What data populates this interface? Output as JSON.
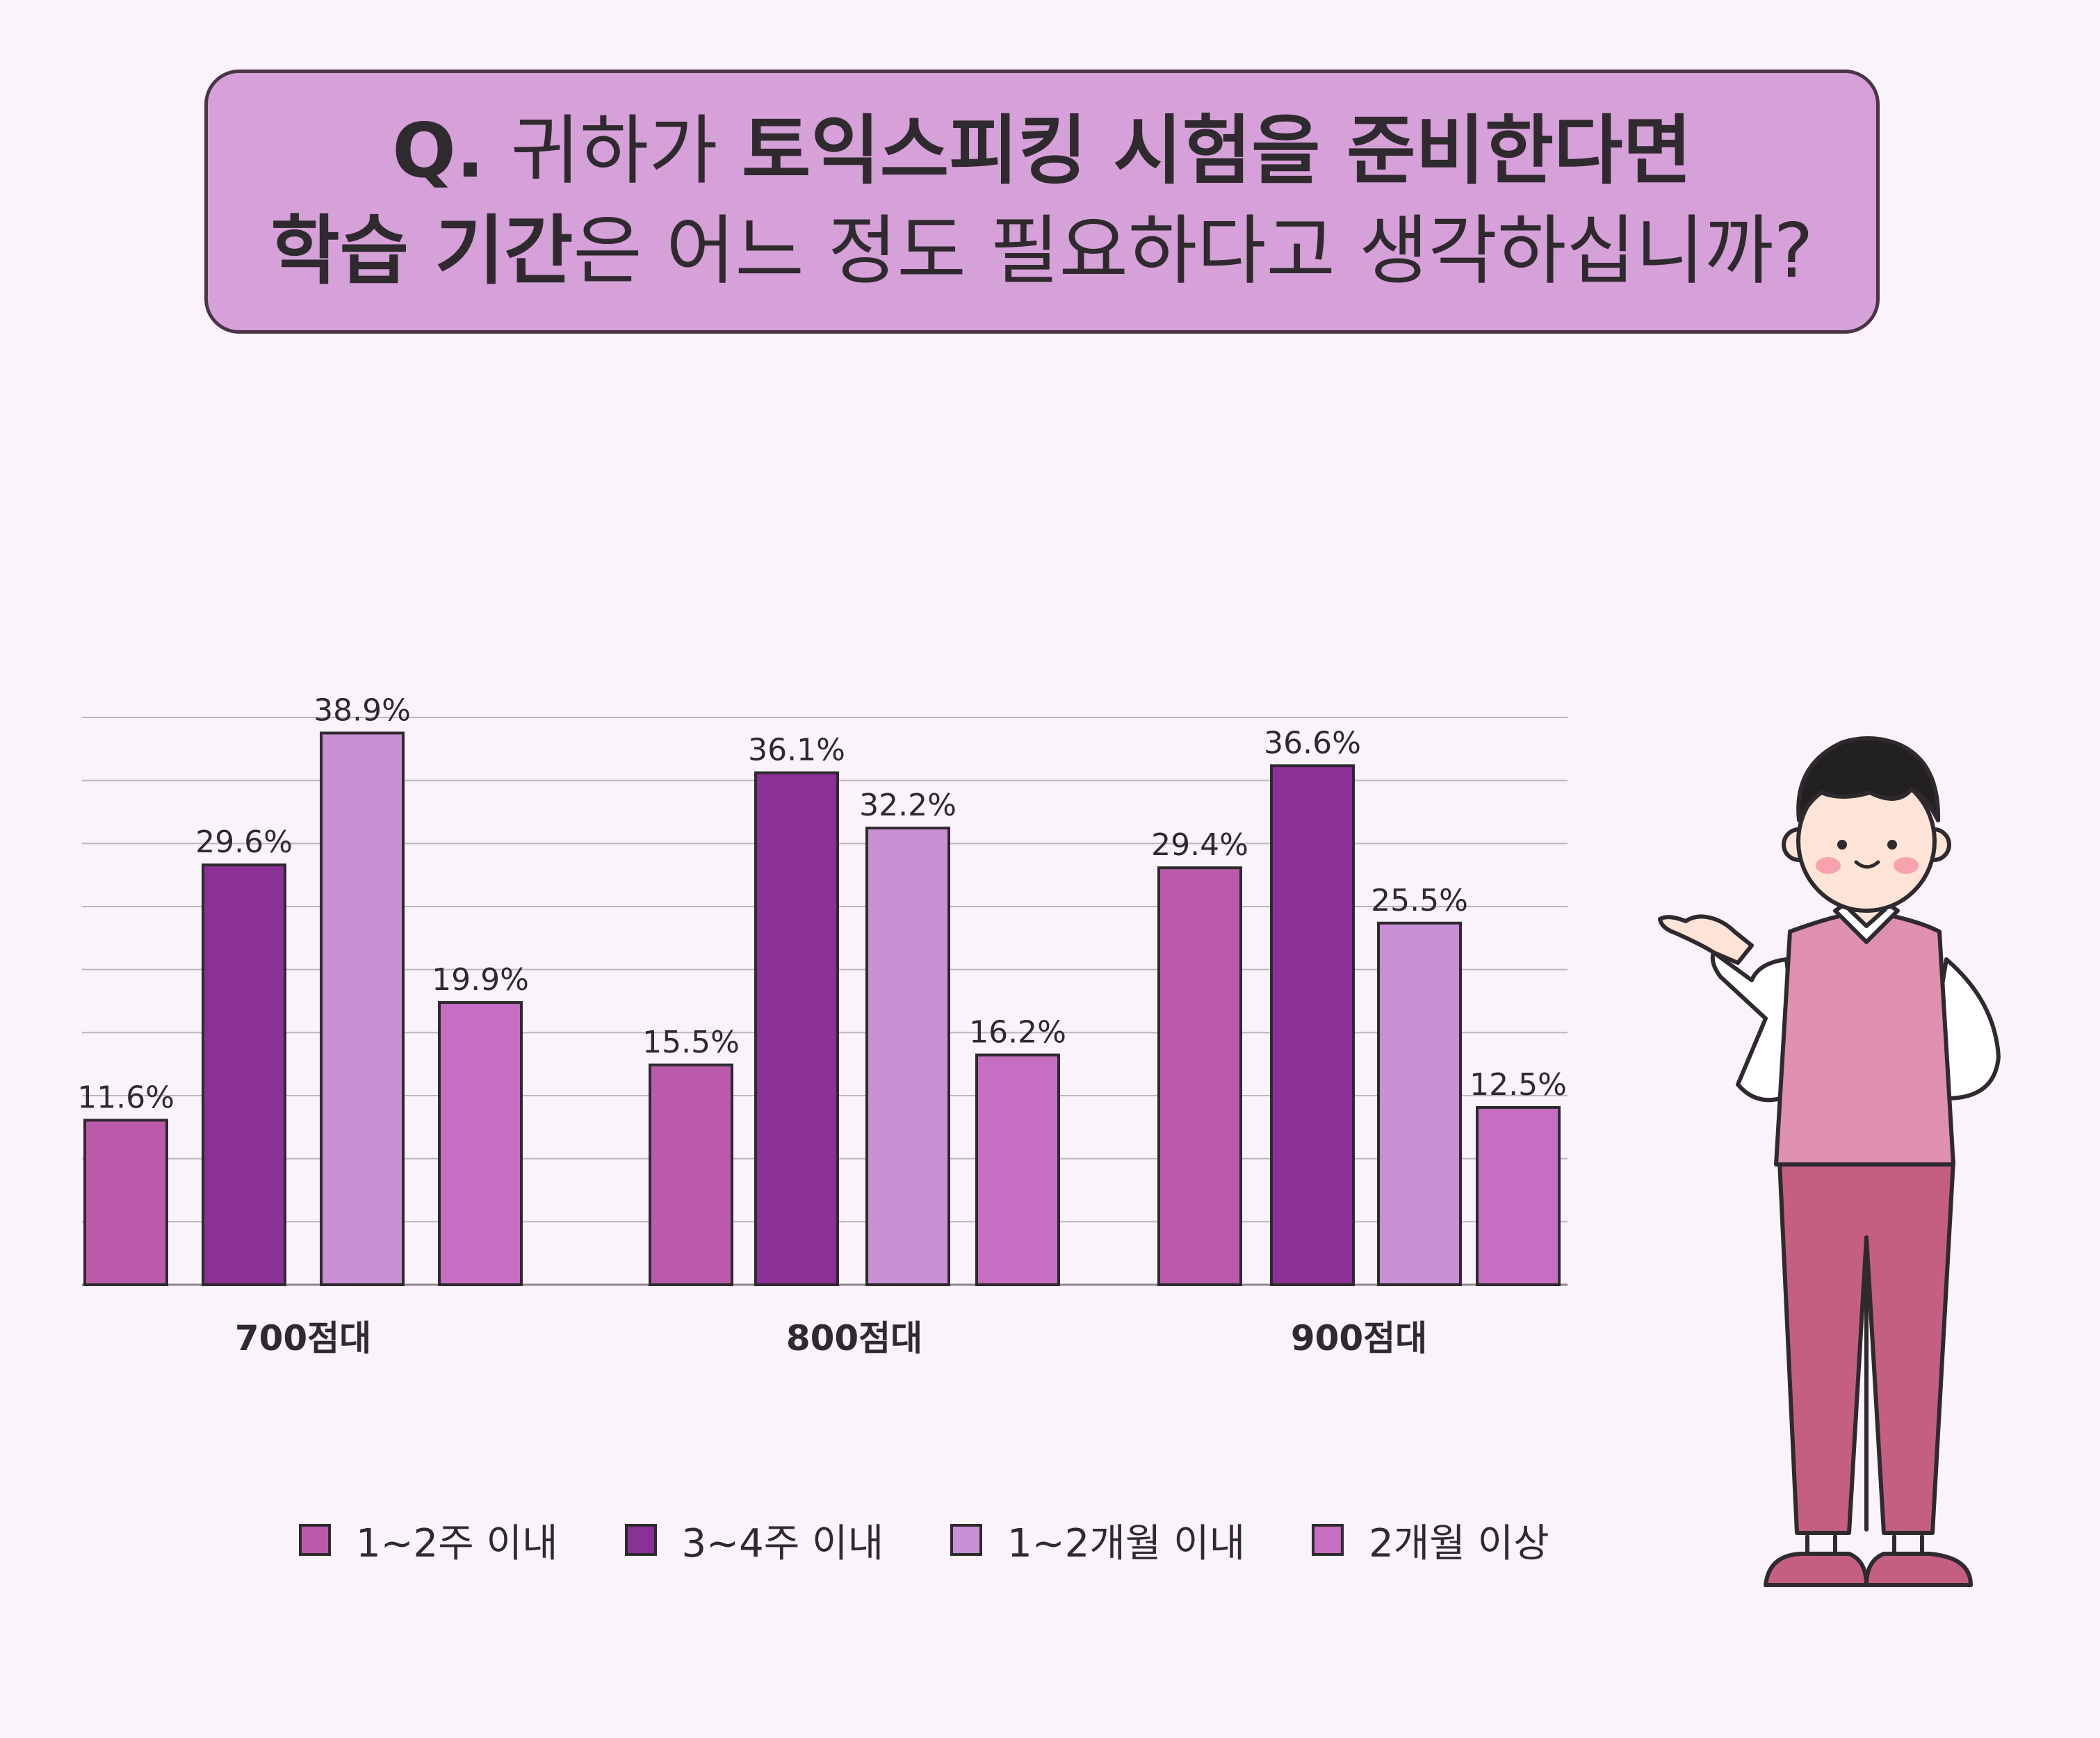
{
  "title": {
    "line1": [
      {
        "text": "Q. ",
        "bold": true
      },
      {
        "text": "귀하가 ",
        "bold": false
      },
      {
        "text": "토익스피킹 시험을 준비한다면",
        "bold": true
      }
    ],
    "line2": [
      {
        "text": "학습 기간",
        "bold": true
      },
      {
        "text": "은 어느 정도 필요하다고 생각하십니까?",
        "bold": false
      }
    ]
  },
  "colors": {
    "background": "#faf3fc",
    "title_box": "#d6a0d8",
    "series": [
      "#bb5aab",
      "#8b3096",
      "#c990d4",
      "#c56ec2"
    ],
    "outline": "#2e2a2e",
    "grid": "#bcb6bc"
  },
  "chart_data": {
    "type": "bar",
    "categories": [
      "700점대",
      "800점대",
      "900점대"
    ],
    "series": [
      {
        "name": "1~2주 이내",
        "values": [
          11.6,
          15.5,
          29.4
        ]
      },
      {
        "name": "3~4주 이내",
        "values": [
          29.6,
          36.1,
          36.6
        ]
      },
      {
        "name": "1~2개월 이내",
        "values": [
          38.9,
          32.2,
          25.5
        ]
      },
      {
        "name": "2개월 이상",
        "values": [
          19.9,
          16.2,
          12.5
        ]
      }
    ],
    "value_labels": [
      [
        "11.6%",
        "15.5%",
        "29.4%"
      ],
      [
        "29.6%",
        "36.1%",
        "36.6%"
      ],
      [
        "38.9%",
        "32.2%",
        "25.5%"
      ],
      [
        "19.9%",
        "16.2%",
        "12.5%"
      ]
    ],
    "ylim": [
      0,
      40
    ],
    "grid": true,
    "legend": "bottom"
  },
  "illustration": {
    "name": "presenter-character-icon"
  }
}
